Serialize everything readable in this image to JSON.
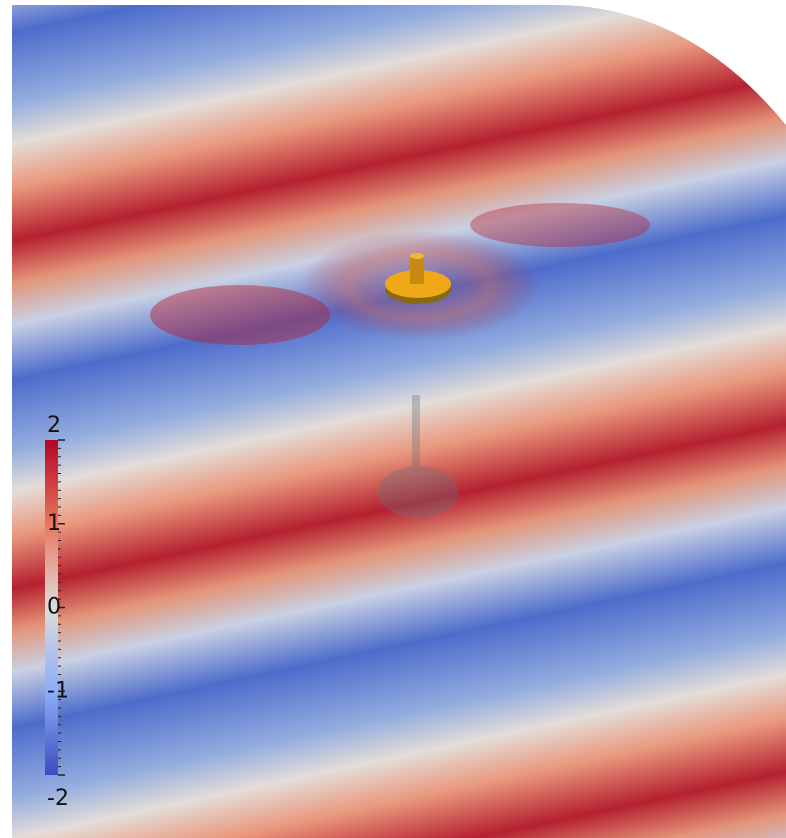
{
  "colorbar": {
    "lim": [
      -2,
      2
    ],
    "ticks": [
      2,
      1,
      0,
      -1,
      -2
    ]
  }
}
